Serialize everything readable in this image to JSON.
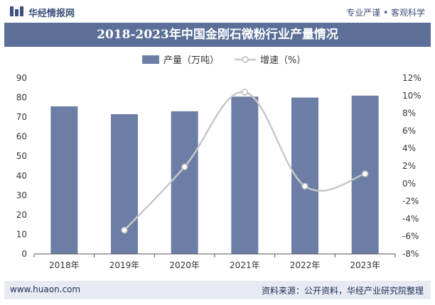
{
  "header": {
    "brand": "华经情报网",
    "tagline": "专业严谨 • 客观科学"
  },
  "footer": {
    "website": "www.huaon.com",
    "source": "资料来源：公开资料，华经产业研究院整理"
  },
  "chart_data": {
    "type": "bar",
    "title": "2018-2023年中国金刚石微粉行业产量情况",
    "categories": [
      "2018年",
      "2019年",
      "2020年",
      "2021年",
      "2022年",
      "2023年"
    ],
    "series": [
      {
        "name": "产量（万吨）",
        "type": "bar",
        "axis": "left",
        "values": [
          75.5,
          71.5,
          73,
          80.5,
          80,
          81
        ]
      },
      {
        "name": "增速（%）",
        "type": "line",
        "axis": "right",
        "values": [
          null,
          -5.3,
          1.9,
          10.4,
          -0.3,
          1.1
        ]
      }
    ],
    "y_left": {
      "min": 0,
      "max": 90,
      "step": 10,
      "ticks": [
        "0",
        "10",
        "20",
        "30",
        "40",
        "50",
        "60",
        "70",
        "80",
        "90"
      ]
    },
    "y_right": {
      "min": -8,
      "max": 12,
      "step": 2,
      "ticks": [
        "-8%",
        "-6%",
        "-4%",
        "-2%",
        "0%",
        "2%",
        "4%",
        "6%",
        "8%",
        "10%",
        "12%"
      ]
    },
    "legend_position": "top-center",
    "grid": false,
    "colors": {
      "bar": "#6d7ea6",
      "line": "#c8c8c8",
      "marker_fill": "#ffffff",
      "marker_stroke": "#bbbbbb"
    }
  }
}
